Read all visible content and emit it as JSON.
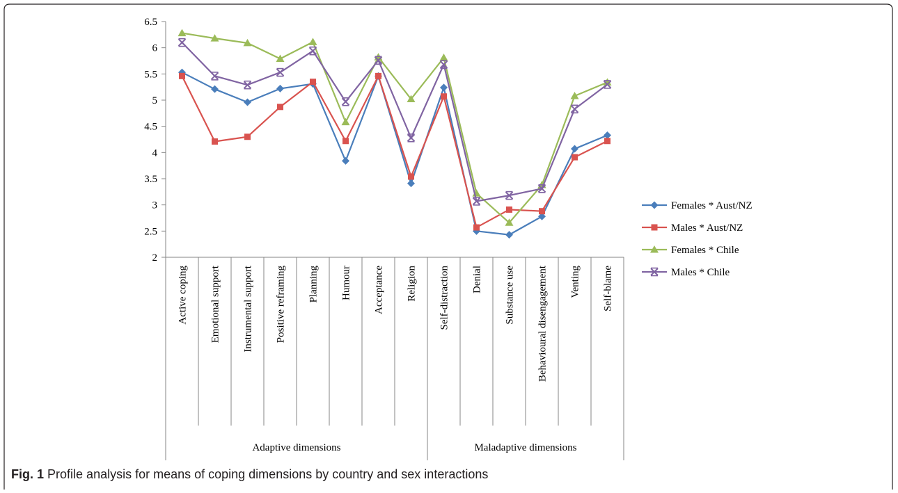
{
  "caption": {
    "label": "Fig. 1",
    "text": "Profile analysis for means of coping dimensions by country and sex interactions"
  },
  "chart_data": {
    "type": "line",
    "categories": [
      "Active coping",
      "Emotional support",
      "Instrumental support",
      "Positive reframing",
      "Planning",
      "Humour",
      "Acceptance",
      "Religion",
      "Self-distraction",
      "Denial",
      "Substance use",
      "Behavioural disengagement",
      "Venting",
      "Self-blame"
    ],
    "groups": [
      {
        "label": "Adaptive dimensions",
        "count": 8
      },
      {
        "label": "Maladaptive dimensions",
        "count": 6
      }
    ],
    "ylim": [
      2,
      6.5
    ],
    "yticks": [
      "2",
      "2.5",
      "3",
      "3.5",
      "4",
      "4.5",
      "5",
      "5.5",
      "6",
      "6.5"
    ],
    "xlabel": "",
    "ylabel": "",
    "grid": false,
    "legend_position": "right",
    "series": [
      {
        "name": "Females * Aust/NZ",
        "color": "#4a7ebb",
        "marker": "diamond",
        "values": [
          5.53,
          5.21,
          4.96,
          5.22,
          5.31,
          3.84,
          5.46,
          3.41,
          5.24,
          2.5,
          2.43,
          2.78,
          4.07,
          4.33
        ]
      },
      {
        "name": "Males * Aust/NZ",
        "color": "#d9534f",
        "marker": "square",
        "values": [
          5.46,
          4.21,
          4.3,
          4.87,
          5.35,
          4.22,
          5.46,
          3.54,
          5.07,
          2.57,
          2.91,
          2.88,
          3.91,
          4.22
        ]
      },
      {
        "name": "Females * Chile",
        "color": "#9bbb59",
        "marker": "triangle",
        "values": [
          6.28,
          6.18,
          6.09,
          5.79,
          6.11,
          4.58,
          5.82,
          5.02,
          5.81,
          3.22,
          2.66,
          3.38,
          5.08,
          5.34
        ]
      },
      {
        "name": "Males * Chile",
        "color": "#8064a2",
        "marker": "star",
        "values": [
          6.1,
          5.46,
          5.29,
          5.53,
          5.94,
          4.97,
          5.76,
          4.28,
          5.68,
          3.07,
          3.18,
          3.31,
          4.83,
          5.3
        ]
      }
    ]
  }
}
